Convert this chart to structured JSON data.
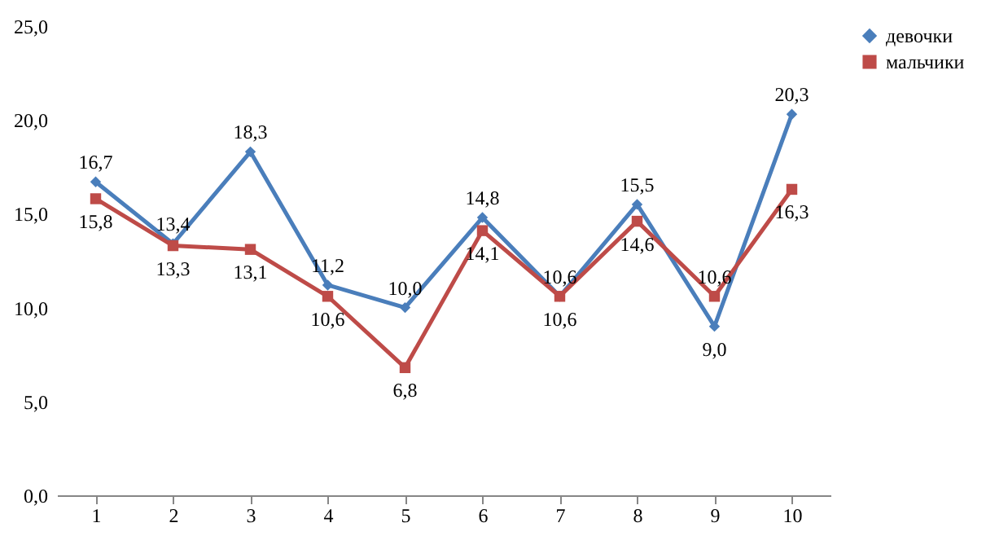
{
  "chart_data": {
    "type": "line",
    "categories": [
      "1",
      "2",
      "3",
      "4",
      "5",
      "6",
      "7",
      "8",
      "9",
      "10"
    ],
    "series": [
      {
        "name": "девочки",
        "color": "#4a7ebb",
        "marker": "diamond",
        "values": [
          16.7,
          13.4,
          18.3,
          11.2,
          10.0,
          14.8,
          10.6,
          15.5,
          9.0,
          20.3
        ],
        "value_labels": [
          "16,7",
          "13,4",
          "18,3",
          "11,2",
          "10,0",
          "14,8",
          "10,6",
          "15,5",
          "9,0",
          "20,3"
        ]
      },
      {
        "name": "мальчики",
        "color": "#be4b48",
        "marker": "square",
        "values": [
          15.8,
          13.3,
          13.1,
          10.6,
          6.8,
          14.1,
          10.6,
          14.6,
          10.6,
          16.3
        ],
        "value_labels": [
          "15,8",
          "13,3",
          "13,1",
          "10,6",
          "6,8",
          "14,1",
          "10,6",
          "14,6",
          "10,6",
          "16,3"
        ]
      }
    ],
    "ylim": [
      0,
      25
    ],
    "yticks": [
      {
        "value": 0,
        "label": "0,0"
      },
      {
        "value": 5,
        "label": "5,0"
      },
      {
        "value": 10,
        "label": "10,0"
      },
      {
        "value": 15,
        "label": "15,0"
      },
      {
        "value": 20,
        "label": "20,0"
      },
      {
        "value": 25,
        "label": "25,0"
      }
    ],
    "grid": false,
    "legend": "right",
    "line_style": "solid"
  }
}
